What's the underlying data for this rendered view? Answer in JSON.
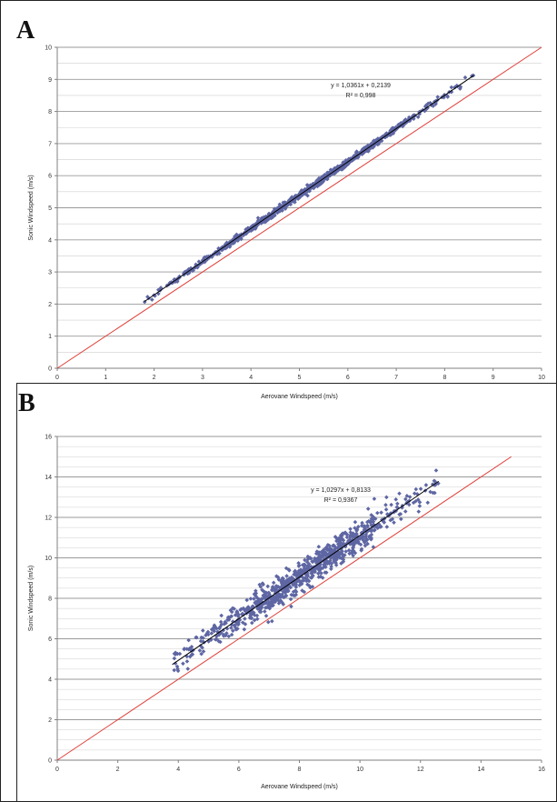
{
  "panels": [
    {
      "letter": "A",
      "chart_data": {
        "type": "scatter",
        "title": "",
        "xlabel": "Aerovane Windspeed (m/s)",
        "ylabel": "Sonic Windspeed (m/s)",
        "xlim": [
          0,
          10
        ],
        "ylim": [
          0,
          10
        ],
        "xticks": [
          "0",
          "1",
          "2",
          "3",
          "4",
          "5",
          "6",
          "7",
          "8",
          "9",
          "10"
        ],
        "yticks": [
          "0",
          "1",
          "2",
          "3",
          "4",
          "5",
          "6",
          "7",
          "8",
          "9",
          "10"
        ],
        "grid": true,
        "minor_gridlines_per_major": 2,
        "legend": "none",
        "equation": "y = 1,0361x + 0,2139",
        "r2": "R² = 0,998",
        "fit": {
          "slope": 1.0361,
          "intercept": 0.2139,
          "x_range": [
            1.8,
            8.6
          ]
        },
        "identity_line": {
          "x_range": [
            0,
            10
          ]
        },
        "points_pattern": {
          "kind": "linear-band",
          "x_range": [
            1.8,
            8.6
          ],
          "slope": 1.0361,
          "intercept": 0.2139,
          "spread": 0.05,
          "count": 900
        },
        "colors": {
          "points": "#5e66a3",
          "fit": "#000000",
          "identity": "#e0403a",
          "grid": "#bdbdbd",
          "axis": "#808080"
        }
      }
    },
    {
      "letter": "B",
      "chart_data": {
        "type": "scatter",
        "title": "",
        "xlabel": "Aerovane Windspeed (m/s)",
        "ylabel": "Sonic Windspeed (m/s)",
        "xlim": [
          0,
          16
        ],
        "ylim": [
          0,
          16
        ],
        "xticks": [
          "0",
          "2",
          "4",
          "6",
          "8",
          "10",
          "12",
          "14",
          "16"
        ],
        "yticks": [
          "0",
          "2",
          "4",
          "6",
          "8",
          "10",
          "12",
          "14",
          "16"
        ],
        "grid": true,
        "minor_gridlines_per_major": 4,
        "legend": "none",
        "equation": "y = 1,0297x + 0,8133",
        "r2": "R² = 0,9367",
        "fit": {
          "slope": 1.0297,
          "intercept": 0.8133,
          "x_range": [
            3.8,
            12.6
          ]
        },
        "identity_line": {
          "x_range": [
            0,
            15
          ]
        },
        "points_pattern": {
          "kind": "linear-band",
          "x_range": [
            3.8,
            12.6
          ],
          "slope": 1.0297,
          "intercept": 0.8133,
          "spread": 0.35,
          "count": 900
        },
        "colors": {
          "points": "#5e66a3",
          "fit": "#000000",
          "identity": "#e0403a",
          "grid": "#bdbdbd",
          "axis": "#808080"
        }
      }
    }
  ]
}
